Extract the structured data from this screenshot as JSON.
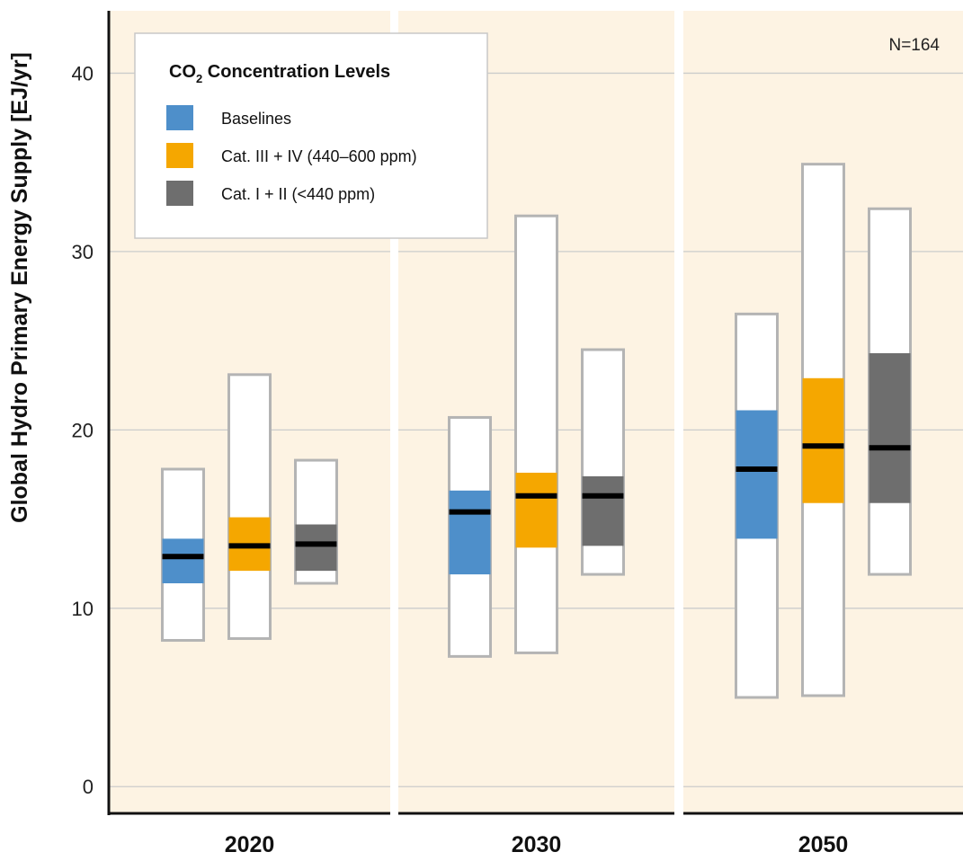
{
  "chart_data": {
    "type": "box",
    "ylabel": "Global Hydro Primary Energy Supply [EJ/yr]",
    "ylim": [
      -1.5,
      43.5
    ],
    "yticks": [
      0,
      10,
      20,
      30,
      40
    ],
    "grid": true,
    "annotation": "N=164",
    "legend": {
      "title_main": "CO",
      "title_sub": "2",
      "title_rest": " Concentration Levels",
      "placement": "top-left"
    },
    "series": [
      {
        "name": "Baselines",
        "color": "#4e8fca"
      },
      {
        "name": "Cat. III + IV (440–600 ppm)",
        "color": "#f5a700"
      },
      {
        "name": "Cat. I + II (<440 ppm)",
        "color": "#6e6e6e"
      }
    ],
    "groups": [
      {
        "label": "2020",
        "boxes": [
          {
            "min": 8.2,
            "q1": 11.4,
            "median": 12.9,
            "q3": 13.9,
            "max": 17.8
          },
          {
            "min": 8.3,
            "q1": 12.1,
            "median": 13.5,
            "q3": 15.1,
            "max": 23.1
          },
          {
            "min": 11.4,
            "q1": 12.1,
            "median": 13.6,
            "q3": 14.7,
            "max": 18.3
          }
        ]
      },
      {
        "label": "2030",
        "boxes": [
          {
            "min": 7.3,
            "q1": 11.9,
            "median": 15.4,
            "q3": 16.6,
            "max": 20.7
          },
          {
            "min": 7.5,
            "q1": 13.4,
            "median": 16.3,
            "q3": 17.6,
            "max": 32.0
          },
          {
            "min": 11.9,
            "q1": 13.5,
            "median": 16.3,
            "q3": 17.4,
            "max": 24.5
          }
        ]
      },
      {
        "label": "2050",
        "boxes": [
          {
            "min": 5.0,
            "q1": 13.9,
            "median": 17.8,
            "q3": 21.1,
            "max": 26.5
          },
          {
            "min": 5.1,
            "q1": 15.9,
            "median": 19.1,
            "q3": 22.9,
            "max": 34.9
          },
          {
            "min": 11.9,
            "q1": 15.9,
            "median": 19.0,
            "q3": 24.3,
            "max": 32.4
          }
        ]
      }
    ]
  },
  "colors": {
    "panel_bg": "#fdf3e3",
    "grid": "#cccccc",
    "box_border": "#b4b4b4",
    "median": "#000000"
  }
}
